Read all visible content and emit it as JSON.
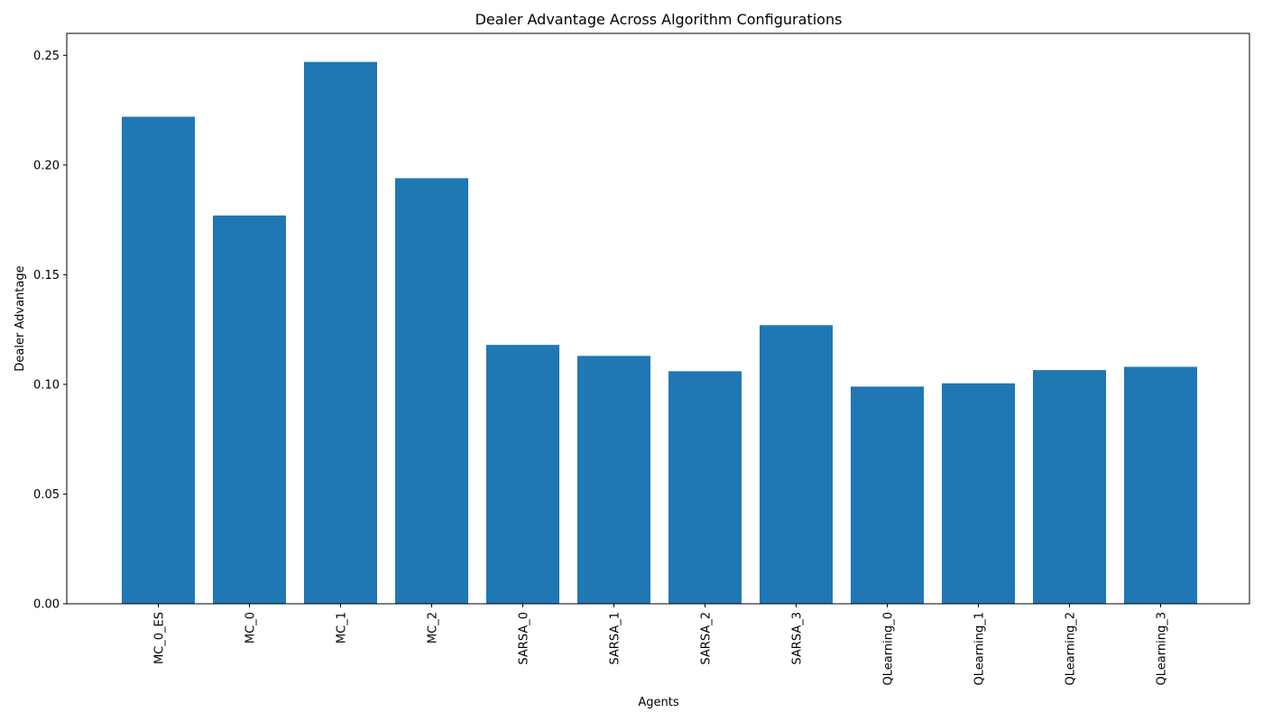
{
  "chart_data": {
    "type": "bar",
    "title": "Dealer Advantage Across Algorithm Configurations",
    "xlabel": "Agents",
    "ylabel": "Dealer Advantage",
    "categories": [
      "MC_0_ES",
      "MC_0",
      "MC_1",
      "MC_2",
      "SARSA_0",
      "SARSA_1",
      "SARSA_2",
      "SARSA_3",
      "QLearning_0",
      "QLearning_1",
      "QLearning_2",
      "QLearning_3"
    ],
    "values": [
      0.222,
      0.177,
      0.247,
      0.194,
      0.118,
      0.113,
      0.106,
      0.127,
      0.099,
      0.1005,
      0.1065,
      0.108
    ],
    "ylim": [
      0,
      0.26
    ],
    "yticks": [
      0.0,
      0.05,
      0.1,
      0.15,
      0.2,
      0.25
    ],
    "ytick_labels": [
      "0.00",
      "0.05",
      "0.10",
      "0.15",
      "0.20",
      "0.25"
    ],
    "grid": false,
    "legend": "none",
    "bar_color": "#1f77b4"
  }
}
